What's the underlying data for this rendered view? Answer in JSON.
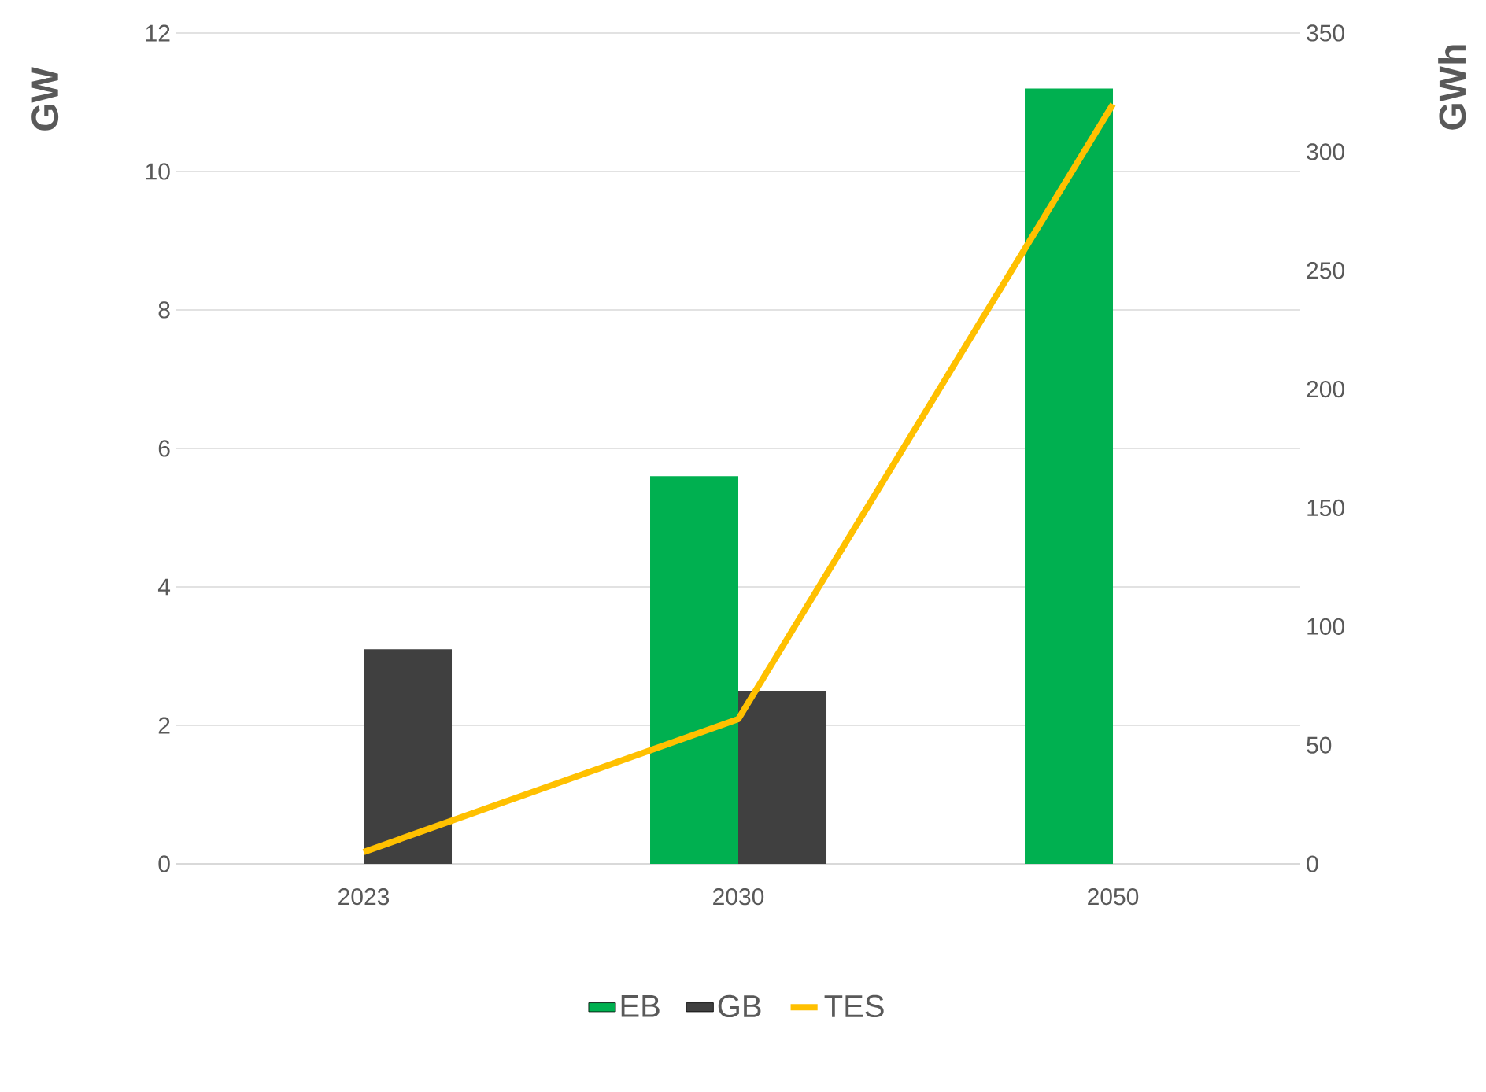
{
  "chart_data": {
    "type": "bar",
    "categories": [
      "2023",
      "2030",
      "2050"
    ],
    "ylabel": "GW",
    "y2label": "GWh",
    "ylim": [
      0,
      12
    ],
    "yticks": [
      0,
      2,
      4,
      6,
      8,
      10,
      12
    ],
    "y2lim": [
      0,
      350
    ],
    "y2ticks": [
      0,
      50,
      100,
      150,
      200,
      250,
      300,
      350
    ],
    "grid": "y",
    "legend": "bottom",
    "series": [
      {
        "name": "EB",
        "color": "#00b050",
        "values": [
          null,
          5.6,
          11.2
        ]
      },
      {
        "name": "GB",
        "color": "#404040",
        "values": [
          3.1,
          2.5,
          null
        ]
      },
      {
        "name": "TES",
        "type": "line",
        "axis": "y2",
        "color": "#ffc000",
        "values": [
          5,
          61,
          320
        ]
      }
    ]
  }
}
